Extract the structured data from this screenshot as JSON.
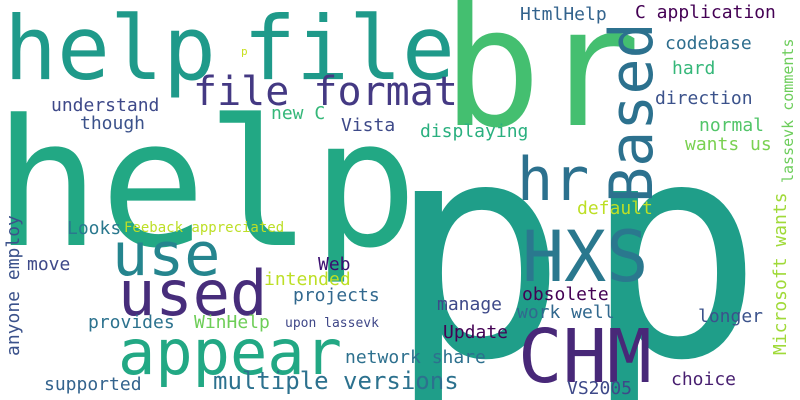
{
  "words": [
    {
      "id": "p1",
      "text": "p",
      "color": "#1f9e89"
    },
    {
      "id": "p2",
      "text": "p",
      "color": "#1f9e89"
    },
    {
      "id": "help1",
      "text": "help",
      "color": "#22a884"
    },
    {
      "id": "help2",
      "text": "help",
      "color": "#1f9a8a"
    },
    {
      "id": "file1",
      "text": "file",
      "color": "#1f9a8a"
    },
    {
      "id": "br",
      "text": "br",
      "color": "#44bf70"
    },
    {
      "id": "hxs",
      "text": "HXS",
      "color": "#2a788e"
    },
    {
      "id": "chm",
      "text": "CHM",
      "color": "#482878"
    },
    {
      "id": "appear",
      "text": "appear",
      "color": "#22a884"
    },
    {
      "id": "used",
      "text": "used",
      "color": "#472d7b"
    },
    {
      "id": "use",
      "text": "use",
      "color": "#25858e"
    },
    {
      "id": "hr",
      "text": "hr",
      "color": "#2c718e"
    },
    {
      "id": "based",
      "text": "Based",
      "color": "#2c718e"
    },
    {
      "id": "file-format",
      "text": "file format",
      "color": "#443983"
    },
    {
      "id": "multiple-versions",
      "text": "multiple versions",
      "color": "#2c718e"
    },
    {
      "id": "htmlhelp",
      "text": "HtmlHelp",
      "color": "#33638d"
    },
    {
      "id": "c-application",
      "text": "C application",
      "color": "#440154"
    },
    {
      "id": "codebase",
      "text": "codebase",
      "color": "#2e6e8e"
    },
    {
      "id": "hard",
      "text": "hard",
      "color": "#35b779"
    },
    {
      "id": "direction",
      "text": "direction",
      "color": "#3b528b"
    },
    {
      "id": "normal",
      "text": "normal",
      "color": "#52c569"
    },
    {
      "id": "wants-us",
      "text": "wants us",
      "color": "#7ad151"
    },
    {
      "id": "default",
      "text": "default",
      "color": "#bddf26"
    },
    {
      "id": "lassevk-comments",
      "text": "lassevk comments",
      "color": "#6ccd5a"
    },
    {
      "id": "microsoft-wants",
      "text": "Microsoft wants",
      "color": "#a0da39"
    },
    {
      "id": "understand",
      "text": "understand",
      "color": "#3e4989"
    },
    {
      "id": "though",
      "text": "though",
      "color": "#3b528b"
    },
    {
      "id": "new-c",
      "text": "new C",
      "color": "#35b779"
    },
    {
      "id": "vista",
      "text": "Vista",
      "color": "#3e4a89"
    },
    {
      "id": "displaying",
      "text": "displaying",
      "color": "#2ab07f"
    },
    {
      "id": "looks",
      "text": "Looks",
      "color": "#2a788e"
    },
    {
      "id": "feeback",
      "text": "Feeback appreciated",
      "color": "#bddf26"
    },
    {
      "id": "anyone-employ",
      "text": "anyone employ",
      "color": "#3b528b"
    },
    {
      "id": "move",
      "text": "move",
      "color": "#3e4989"
    },
    {
      "id": "web",
      "text": "Web",
      "color": "#3b0f70"
    },
    {
      "id": "intended",
      "text": "intended",
      "color": "#bddf26"
    },
    {
      "id": "projects",
      "text": "projects",
      "color": "#31688e"
    },
    {
      "id": "provides",
      "text": "provides",
      "color": "#2c728e"
    },
    {
      "id": "winhelp",
      "text": "WinHelp",
      "color": "#6ece58"
    },
    {
      "id": "upon-lassevk",
      "text": "upon lassevk",
      "color": "#3f4788"
    },
    {
      "id": "manage",
      "text": "manage",
      "color": "#3e4989"
    },
    {
      "id": "obsolete",
      "text": "obsolete",
      "color": "#440154"
    },
    {
      "id": "work-well",
      "text": "work well",
      "color": "#31688e"
    },
    {
      "id": "update",
      "text": "Update",
      "color": "#440154"
    },
    {
      "id": "longer",
      "text": "longer",
      "color": "#3b528b"
    },
    {
      "id": "network-share",
      "text": "network share",
      "color": "#2d708e"
    },
    {
      "id": "choice",
      "text": "choice",
      "color": "#481f70"
    },
    {
      "id": "supported",
      "text": "supported",
      "color": "#33638d"
    },
    {
      "id": "vs2005",
      "text": "VS2005",
      "color": "#3e4989"
    },
    {
      "id": "small-p",
      "text": "p",
      "color": "#c8e020"
    }
  ]
}
